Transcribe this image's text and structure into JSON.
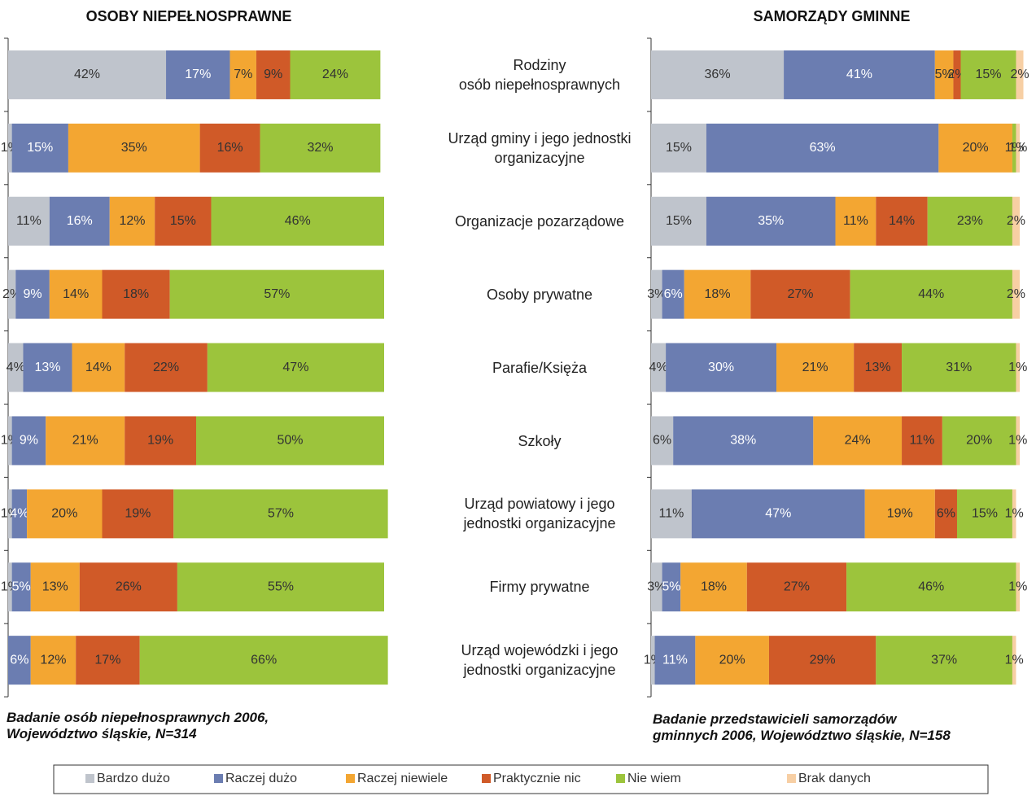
{
  "chart_data": [
    {
      "type": "bar",
      "orientation": "horizontal",
      "stacked": true,
      "title": "OSOBY NIEPEŁNOSPRAWNE",
      "subtitle": "Badanie osób niepełnosprawnych 2006,\nWojewództwo śląskie, N=314",
      "xlim": [
        0,
        100
      ],
      "categories": [
        "Rodziny\nosób niepełnosprawnych",
        "Urząd gminy i jego jednostki\norganizacyjne",
        "Organizacje pozarządowe",
        "Osoby prywatne",
        "Parafie/Księża",
        "Szkoły",
        "Urząd powiatowy i jego\njednostki organizacyjne",
        "Firmy prywatne",
        "Urząd wojewódzki i jego\njednostki organizacyjne"
      ],
      "series": [
        {
          "name": "Bardzo dużo",
          "color": "#bfc4cc",
          "values": [
            42,
            1,
            11,
            2,
            4,
            1,
            1,
            1,
            null
          ],
          "value_labels": [
            "42%",
            "1%",
            "11%",
            "2%",
            "4%",
            "1%",
            "1%",
            "1%",
            null
          ]
        },
        {
          "name": "Raczej dużo",
          "color": "#6b7db1",
          "values": [
            17,
            15,
            16,
            9,
            13,
            9,
            4,
            5,
            6
          ],
          "value_labels": [
            "17%",
            "15%",
            "16%",
            "9%",
            "13%",
            "9%",
            "4%",
            "5%",
            "6%"
          ]
        },
        {
          "name": "Raczej niewiele",
          "color": "#f3a632",
          "values": [
            7,
            35,
            12,
            14,
            14,
            21,
            20,
            13,
            12
          ],
          "value_labels": [
            "7%",
            "35%",
            "12%",
            "14%",
            "14%",
            "21%",
            "20%",
            "13%",
            "12%"
          ]
        },
        {
          "name": "Praktycznie nic",
          "color": "#d05a28",
          "values": [
            9,
            16,
            15,
            18,
            22,
            19,
            19,
            26,
            17
          ],
          "value_labels": [
            "9%",
            "16%",
            "15%",
            "18%",
            "22%",
            "19%",
            "19%",
            "26%",
            "17%"
          ]
        },
        {
          "name": "Nie wiem",
          "color": "#9cc43c",
          "values": [
            24,
            32,
            46,
            57,
            47,
            50,
            57,
            55,
            66
          ],
          "value_labels": [
            "24%",
            "32%",
            "46%",
            "57%",
            "47%",
            "50%",
            "57%",
            "55%",
            "66%"
          ]
        },
        {
          "name": "Brak danych",
          "color": "#f7cfa4",
          "values": [
            null,
            null,
            null,
            null,
            null,
            null,
            null,
            null,
            null
          ],
          "value_labels": [
            null,
            null,
            null,
            null,
            null,
            null,
            null,
            null,
            null
          ]
        }
      ]
    },
    {
      "type": "bar",
      "orientation": "horizontal",
      "stacked": true,
      "title": "SAMORZĄDY GMINNE",
      "subtitle": "Badanie przedstawicieli samorządów\ngminnych 2006, Województwo śląskie, N=158",
      "xlim": [
        0,
        100
      ],
      "series": [
        {
          "color": "#bfc4cc",
          "values": [
            36,
            15,
            15,
            3,
            4,
            6,
            11,
            3,
            1
          ],
          "value_labels": [
            "36%",
            "15%",
            "15%",
            "3%",
            "4%",
            "6%",
            "11%",
            "3%",
            "1%"
          ]
        },
        {
          "color": "#6b7db1",
          "values": [
            41,
            63,
            35,
            6,
            30,
            38,
            47,
            5,
            11
          ],
          "value_labels": [
            "41%",
            "63%",
            "35%",
            "6%",
            "30%",
            "38%",
            "47%",
            "5%",
            "11%"
          ]
        },
        {
          "color": "#f3a632",
          "values": [
            5,
            20,
            11,
            18,
            21,
            24,
            19,
            18,
            20
          ],
          "value_labels": [
            "5%",
            "20%",
            "11%",
            "18%",
            "21%",
            "24%",
            "19%",
            "18%",
            "20%"
          ]
        },
        {
          "color": "#d05a28",
          "values": [
            2,
            null,
            14,
            27,
            13,
            11,
            6,
            27,
            29
          ],
          "value_labels": [
            "2%",
            null,
            "14%",
            "27%",
            "13%",
            "11%",
            "6%",
            "27%",
            "29%"
          ]
        },
        {
          "color": "#9cc43c",
          "values": [
            15,
            1,
            23,
            44,
            31,
            20,
            15,
            46,
            37
          ],
          "value_labels": [
            "15%",
            "1%",
            "23%",
            "44%",
            "31%",
            "20%",
            "15%",
            "46%",
            "37%"
          ]
        },
        {
          "color": "#f7cfa4",
          "values": [
            2,
            1,
            2,
            2,
            1,
            1,
            1,
            1,
            1
          ],
          "value_labels": [
            "2%",
            "1%",
            "2%",
            "2%",
            "1%",
            "1%",
            "1%",
            "1%",
            "1%"
          ]
        }
      ]
    }
  ]
}
